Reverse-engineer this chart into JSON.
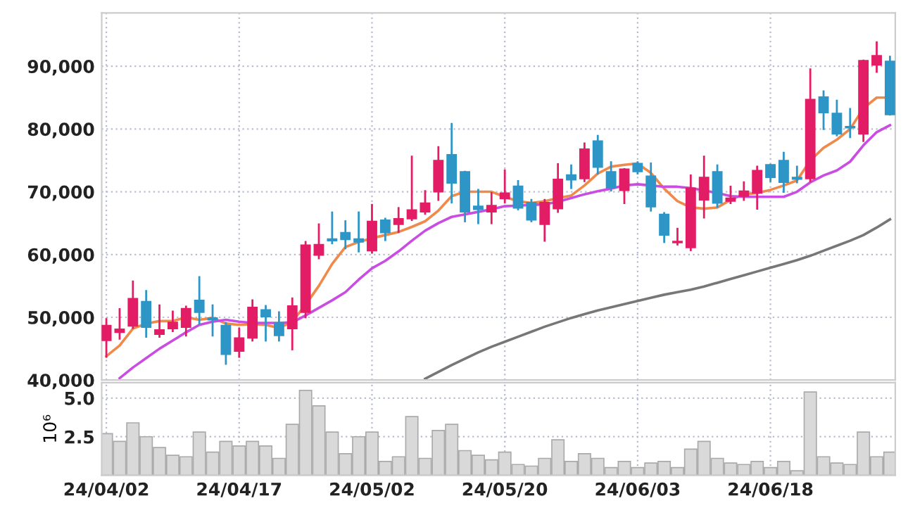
{
  "chart_data": [
    {
      "type": "candlestick",
      "tick_labels": "y",
      "grid": true,
      "categories": [
        null,
        null,
        null,
        null,
        null,
        null,
        null,
        null,
        null,
        null,
        null,
        null,
        null,
        null,
        null,
        null,
        null,
        null,
        null,
        null,
        null,
        null,
        null,
        null,
        null,
        null,
        null,
        null,
        null,
        null,
        null,
        null,
        null,
        null,
        null,
        null,
        null,
        null,
        null,
        null,
        null,
        null,
        null,
        null,
        null,
        null,
        null,
        null,
        null,
        null,
        null,
        null,
        null,
        null,
        null,
        null,
        null,
        null,
        null,
        null
      ],
      "ohlc": [
        [
          46300,
          49700,
          43700,
          48700
        ],
        [
          47600,
          51300,
          46600,
          48100
        ],
        [
          48600,
          55700,
          48300,
          53000
        ],
        [
          52500,
          54200,
          46900,
          48400
        ],
        [
          47300,
          51900,
          46900,
          48000
        ],
        [
          48200,
          50900,
          47800,
          49200
        ],
        [
          48400,
          51700,
          47100,
          51400
        ],
        [
          52700,
          56400,
          49000,
          50800
        ],
        [
          49900,
          51900,
          47100,
          49600
        ],
        [
          48700,
          49100,
          42600,
          44100
        ],
        [
          44600,
          48200,
          43700,
          46700
        ],
        [
          46700,
          52700,
          46300,
          51600
        ],
        [
          51200,
          51800,
          46300,
          50100
        ],
        [
          49100,
          50800,
          46300,
          47100
        ],
        [
          48200,
          53000,
          44900,
          51800
        ],
        [
          50800,
          62000,
          50000,
          61500
        ],
        [
          59900,
          64800,
          59400,
          61600
        ],
        [
          62500,
          66700,
          61800,
          62200
        ],
        [
          63500,
          65300,
          61000,
          62400
        ],
        [
          62500,
          66700,
          60500,
          62000
        ],
        [
          60600,
          67900,
          60300,
          65300
        ],
        [
          65500,
          65700,
          62300,
          63500
        ],
        [
          64800,
          67400,
          63600,
          65700
        ],
        [
          65700,
          75600,
          65500,
          67100
        ],
        [
          66800,
          70100,
          66500,
          68200
        ],
        [
          70000,
          77100,
          68700,
          75000
        ],
        [
          75900,
          80800,
          68300,
          71400
        ],
        [
          73200,
          73200,
          65300,
          66800
        ],
        [
          67700,
          70300,
          65000,
          67200
        ],
        [
          66800,
          69800,
          65000,
          67800
        ],
        [
          68900,
          73400,
          68300,
          69800
        ],
        [
          70900,
          71700,
          67200,
          67400
        ],
        [
          68300,
          68700,
          65300,
          65500
        ],
        [
          64800,
          68700,
          62200,
          68300
        ],
        [
          67300,
          74400,
          66800,
          72000
        ],
        [
          72700,
          74200,
          70600,
          71900
        ],
        [
          72100,
          77700,
          71700,
          76800
        ],
        [
          78100,
          78900,
          72900,
          73900
        ],
        [
          73200,
          74700,
          70200,
          70600
        ],
        [
          70200,
          73600,
          68200,
          73600
        ],
        [
          74500,
          74700,
          72900,
          73200
        ],
        [
          72500,
          74500,
          67000,
          67600
        ],
        [
          66400,
          66600,
          62000,
          63100
        ],
        [
          61900,
          64100,
          61600,
          62100
        ],
        [
          61100,
          72600,
          60700,
          70600
        ],
        [
          68700,
          75600,
          65900,
          72300
        ],
        [
          73200,
          74200,
          67600,
          68200
        ],
        [
          68500,
          70800,
          68200,
          69000
        ],
        [
          69300,
          71500,
          68700,
          70100
        ],
        [
          69800,
          74000,
          67300,
          73400
        ],
        [
          74300,
          74300,
          71700,
          72300
        ],
        [
          75000,
          76200,
          70000,
          71500
        ],
        [
          72300,
          74000,
          71500,
          72000
        ],
        [
          72100,
          89500,
          71700,
          84700
        ],
        [
          85100,
          86000,
          80000,
          82600
        ],
        [
          82500,
          84500,
          79000,
          79200
        ],
        [
          80400,
          83200,
          78700,
          80200
        ],
        [
          79200,
          90900,
          78100,
          90900
        ],
        [
          90200,
          93800,
          89100,
          91700
        ],
        [
          90800,
          91500,
          82300,
          82300
        ]
      ],
      "colors": [
        "#e31c66",
        "#e31c66",
        "#e31c66",
        "#2e95c7",
        "#e31c66",
        "#e31c66",
        "#e31c66",
        "#2e95c7",
        "#2e95c7",
        "#2e95c7",
        "#e31c66",
        "#e31c66",
        "#2e95c7",
        "#2e95c7",
        "#e31c66",
        "#e31c66",
        "#e31c66",
        "#2e95c7",
        "#2e95c7",
        "#2e95c7",
        "#e31c66",
        "#2e95c7",
        "#e31c66",
        "#e31c66",
        "#e31c66",
        "#e31c66",
        "#2e95c7",
        "#2e95c7",
        "#2e95c7",
        "#e31c66",
        "#e31c66",
        "#2e95c7",
        "#2e95c7",
        "#e31c66",
        "#e31c66",
        "#2e95c7",
        "#e31c66",
        "#2e95c7",
        "#2e95c7",
        "#e31c66",
        "#2e95c7",
        "#2e95c7",
        "#2e95c7",
        "#e31c66",
        "#e31c66",
        "#e31c66",
        "#2e95c7",
        "#e31c66",
        "#e31c66",
        "#e31c66",
        "#2e95c7",
        "#2e95c7",
        "#2e95c7",
        "#e31c66",
        "#2e95c7",
        "#2e95c7",
        "#2e95c7",
        "#e31c66",
        "#e31c66",
        "#2e95c7"
      ],
      "series": [
        {
          "type": "line",
          "color": "#f08a4b",
          "values": [
            43800,
            45500,
            48200,
            49000,
            49400,
            49400,
            50000,
            49600,
            49900,
            49000,
            48800,
            48900,
            48800,
            48300,
            49300,
            52000,
            55000,
            58500,
            61200,
            62000,
            62600,
            63100,
            63600,
            64400,
            65300,
            67000,
            69300,
            70000,
            70000,
            70000,
            69200,
            68500,
            68200,
            68500,
            69000,
            69400,
            71000,
            72900,
            74000,
            74300,
            74500,
            73000,
            70500,
            68500,
            67500,
            67300,
            67500,
            68700,
            69600,
            69800,
            70300,
            71000,
            71800,
            75000,
            77000,
            78300,
            80000,
            83300,
            85000,
            85000
          ]
        },
        {
          "type": "line",
          "color": "#c94de0",
          "values": [
            null,
            40300,
            42000,
            43500,
            45000,
            46300,
            47600,
            48800,
            49300,
            49600,
            49300,
            49100,
            49100,
            49100,
            49200,
            50300,
            51500,
            52700,
            54000,
            56000,
            57800,
            59000,
            60500,
            62200,
            63800,
            65000,
            66000,
            66400,
            66800,
            67200,
            67700,
            67800,
            67900,
            68000,
            68400,
            69000,
            69600,
            70100,
            70500,
            71000,
            71200,
            71000,
            70800,
            70800,
            70600,
            70200,
            69800,
            69300,
            69200,
            69200,
            69200,
            69200,
            70000,
            71500,
            72600,
            73400,
            74800,
            77400,
            79500,
            80600
          ]
        },
        {
          "type": "line",
          "color": "#777777",
          "values": [
            null,
            null,
            null,
            null,
            null,
            null,
            null,
            null,
            null,
            null,
            null,
            null,
            null,
            null,
            null,
            null,
            null,
            null,
            null,
            null,
            null,
            null,
            null,
            null,
            40200,
            41300,
            42400,
            43400,
            44400,
            45300,
            46100,
            46900,
            47700,
            48500,
            49200,
            49900,
            50500,
            51100,
            51600,
            52100,
            52600,
            53100,
            53600,
            54000,
            54400,
            54900,
            55500,
            56100,
            56700,
            57300,
            57900,
            58500,
            59100,
            59800,
            60600,
            61400,
            62200,
            63100,
            64300,
            65600
          ]
        }
      ],
      "ylim": [
        40000,
        98500
      ],
      "yticks": [
        {
          "value": 40000,
          "label": "40,000"
        },
        {
          "value": 50000,
          "label": "50,000"
        },
        {
          "value": 60000,
          "label": "60,000"
        },
        {
          "value": 70000,
          "label": "70,000"
        },
        {
          "value": 80000,
          "label": "80,000"
        },
        {
          "value": 90000,
          "label": "90,000"
        }
      ]
    },
    {
      "type": "bar",
      "grid": true,
      "ylabel": "10⁶",
      "color": "#d9d9d9",
      "categories": [
        "24/04/02",
        null,
        null,
        null,
        null,
        null,
        null,
        null,
        null,
        null,
        "24/04/17",
        null,
        null,
        null,
        null,
        null,
        null,
        null,
        null,
        null,
        "24/05/02",
        null,
        null,
        null,
        null,
        null,
        null,
        null,
        null,
        null,
        "24/05/20",
        null,
        null,
        null,
        null,
        null,
        null,
        null,
        null,
        null,
        "24/06/03",
        null,
        null,
        null,
        null,
        null,
        null,
        null,
        null,
        null,
        "24/06/18",
        null,
        null,
        null,
        null,
        null,
        null,
        null,
        null,
        null
      ],
      "values": [
        2.7,
        2.2,
        3.4,
        2.5,
        1.8,
        1.3,
        1.2,
        2.8,
        1.5,
        2.2,
        1.9,
        2.2,
        1.9,
        1.1,
        3.3,
        5.5,
        4.5,
        2.8,
        1.4,
        2.5,
        2.8,
        0.9,
        1.2,
        3.8,
        1.1,
        2.9,
        3.3,
        1.6,
        1.3,
        1.0,
        1.5,
        0.7,
        0.6,
        1.1,
        2.3,
        0.9,
        1.4,
        1.1,
        0.5,
        0.9,
        0.5,
        0.8,
        0.9,
        0.5,
        1.7,
        2.2,
        1.1,
        0.8,
        0.7,
        0.9,
        0.5,
        0.9,
        0.3,
        5.4,
        1.2,
        0.8,
        0.7,
        2.8,
        1.2,
        1.5
      ],
      "ylim": [
        0,
        6
      ],
      "yticks": [
        {
          "value": 2.5,
          "label": "2.5"
        },
        {
          "value": 5,
          "label": "5.0"
        }
      ]
    }
  ]
}
